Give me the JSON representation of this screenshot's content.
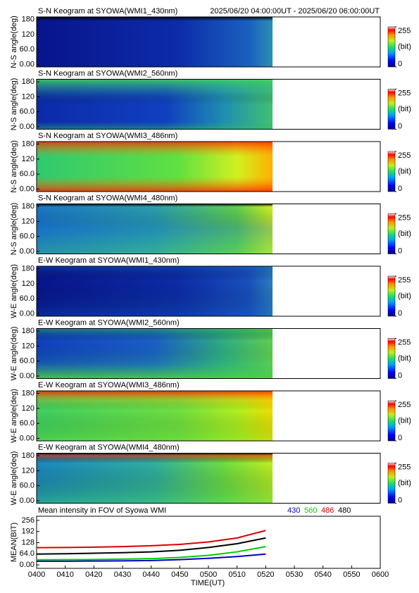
{
  "chart_data": [
    {
      "type": "keogram",
      "title": "S-N Keogram at SYOWA(WMI1_430nm)",
      "subtitle": "2025/06/20 04:00:00UT - 2025/06/20 06:00:00UT",
      "ylabel": "N-S angle(deg)",
      "ylim": [
        -10,
        190
      ],
      "yticks": [
        {
          "value": 0,
          "label": "0.00"
        },
        {
          "value": 60,
          "label": "60.0"
        },
        120,
        180
      ],
      "clim": [
        0,
        255
      ],
      "cticks": [
        0,
        255
      ],
      "clabel": "(bit)"
    },
    {
      "type": "keogram",
      "title": "S-N Keogram at SYOWA(WMI2_560nm)",
      "ylabel": "N-S angle(deg)",
      "ylim": [
        -10,
        190
      ],
      "yticks": [
        {
          "value": 0,
          "label": "0.00"
        },
        {
          "value": 60,
          "label": "60.0"
        },
        120,
        180
      ],
      "clim": [
        0,
        255
      ],
      "cticks": [
        0,
        255
      ],
      "clabel": "(bit)"
    },
    {
      "type": "keogram",
      "title": "S-N Keogram at SYOWA(WMI3_486nm)",
      "ylabel": "N-S angle(deg)",
      "ylim": [
        -10,
        190
      ],
      "yticks": [
        {
          "value": 0,
          "label": "0.00"
        },
        {
          "value": 60,
          "label": "60.0"
        },
        120,
        180
      ],
      "clim": [
        0,
        255
      ],
      "cticks": [
        0,
        255
      ],
      "clabel": "(bit)"
    },
    {
      "type": "keogram",
      "title": "S-N Keogram at SYOWA(WMI4_480nm)",
      "ylabel": "N-S angle(deg)",
      "ylim": [
        -10,
        190
      ],
      "yticks": [
        {
          "value": 0,
          "label": "0.00"
        },
        {
          "value": 60,
          "label": "60.0"
        },
        120,
        180
      ],
      "clim": [
        0,
        255
      ],
      "cticks": [
        0,
        255
      ],
      "clabel": "(bit)"
    },
    {
      "type": "keogram",
      "title": "E-W Keogram at SYOWA(WMI1_430nm)",
      "ylabel": "W-E angle(deg)",
      "ylim": [
        -10,
        190
      ],
      "yticks": [
        {
          "value": 0,
          "label": "0.00"
        },
        {
          "value": 60,
          "label": "60.0"
        },
        120,
        180
      ],
      "clim": [
        0,
        255
      ],
      "cticks": [
        0,
        255
      ],
      "clabel": "(bit)"
    },
    {
      "type": "keogram",
      "title": "E-W Keogram at SYOWA(WMI2_560nm)",
      "ylabel": "W-E angle(deg)",
      "ylim": [
        -10,
        190
      ],
      "yticks": [
        {
          "value": 0,
          "label": "0.00"
        },
        {
          "value": 60,
          "label": "60.0"
        },
        120,
        180
      ],
      "clim": [
        0,
        255
      ],
      "cticks": [
        0,
        255
      ],
      "clabel": "(bit)"
    },
    {
      "type": "keogram",
      "title": "E-W Keogram at SYOWA(WMI3_486nm)",
      "ylabel": "W-E angle(deg)",
      "ylim": [
        -10,
        190
      ],
      "yticks": [
        {
          "value": 0,
          "label": "0.00"
        },
        {
          "value": 60,
          "label": "60.0"
        },
        120,
        180
      ],
      "clim": [
        0,
        255
      ],
      "cticks": [
        0,
        255
      ],
      "clabel": "(bit)"
    },
    {
      "type": "keogram",
      "title": "E-W Keogram at SYOWA(WMI4_480nm)",
      "ylabel": "W-E angle(deg)",
      "ylim": [
        -10,
        190
      ],
      "yticks": [
        {
          "value": 0,
          "label": "0.00"
        },
        {
          "value": 60,
          "label": "60.0"
        },
        120,
        180
      ],
      "clim": [
        0,
        255
      ],
      "cticks": [
        0,
        255
      ],
      "clabel": "(bit)"
    },
    {
      "type": "line",
      "title": "Mean intensity in FOV of Syowa WMI",
      "xlabel": "TIME(UT)",
      "ylabel": "MEAN(BIT)",
      "x": [
        0,
        10,
        20,
        30,
        40,
        50,
        60,
        70,
        80
      ],
      "xlim": [
        0,
        120
      ],
      "xticks": [
        {
          "value": 0,
          "label": "0400"
        },
        {
          "value": 10,
          "label": "0410"
        },
        {
          "value": 20,
          "label": "0420"
        },
        {
          "value": 30,
          "label": "0430"
        },
        {
          "value": 40,
          "label": "0440"
        },
        {
          "value": 50,
          "label": "0450"
        },
        {
          "value": 60,
          "label": "0500"
        },
        {
          "value": 70,
          "label": "0510"
        },
        {
          "value": 80,
          "label": "0520"
        },
        {
          "value": 90,
          "label": "0530"
        },
        {
          "value": 100,
          "label": "0540"
        },
        {
          "value": 110,
          "label": "0550"
        },
        {
          "value": 120,
          "label": "0600"
        }
      ],
      "ylim": [
        -20,
        280
      ],
      "yticks": [
        {
          "value": 0,
          "label": "0.00"
        },
        {
          "value": 64,
          "label": "64.0"
        },
        128,
        192,
        256
      ],
      "series": [
        {
          "name": "430",
          "color": "#0000cc",
          "values": [
            21,
            21,
            22,
            23,
            25,
            30,
            38,
            48,
            62
          ]
        },
        {
          "name": "560",
          "color": "#00cc00",
          "values": [
            29,
            30,
            31,
            33,
            36,
            43,
            55,
            75,
            105
          ]
        },
        {
          "name": "486",
          "color": "#dd0000",
          "values": [
            99,
            100,
            102,
            105,
            110,
            118,
            132,
            155,
            198
          ]
        },
        {
          "name": "480",
          "color": "#000000",
          "values": [
            62,
            64,
            67,
            70,
            75,
            84,
            100,
            122,
            155
          ]
        }
      ]
    }
  ]
}
